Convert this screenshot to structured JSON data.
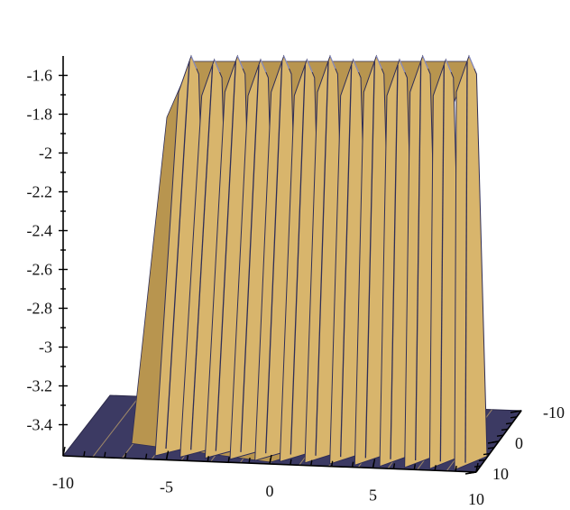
{
  "chart_data": {
    "type": "surface",
    "title": "",
    "z_axis": {
      "ticks": [
        "-1.6",
        "-1.8",
        "-2",
        "-2.2",
        "-2.4",
        "-2.6",
        "-2.8",
        "-3",
        "-3.2",
        "-3.4"
      ],
      "values": [
        -1.6,
        -1.8,
        -2.0,
        -2.2,
        -2.4,
        -2.6,
        -2.8,
        -3.0,
        -3.2,
        -3.4
      ],
      "range": [
        -3.5,
        -1.5
      ]
    },
    "x_axis": {
      "ticks": [
        "-10",
        "-5",
        "0",
        "5",
        "10"
      ],
      "values": [
        -10,
        -5,
        0,
        5,
        10
      ],
      "range": [
        -10,
        10
      ]
    },
    "y_axis": {
      "ticks": [
        "-10",
        "0",
        "10"
      ],
      "values": [
        -10,
        0,
        10
      ],
      "range": [
        -10,
        10
      ]
    },
    "surface": {
      "description_values": {
        "baseline_z": -3.45,
        "peak_z": -1.5,
        "ridge_count": 13
      },
      "colors": {
        "surface": "#d8b56c",
        "mesh": "#2e2d57",
        "floor": "#3c3a63"
      }
    }
  }
}
